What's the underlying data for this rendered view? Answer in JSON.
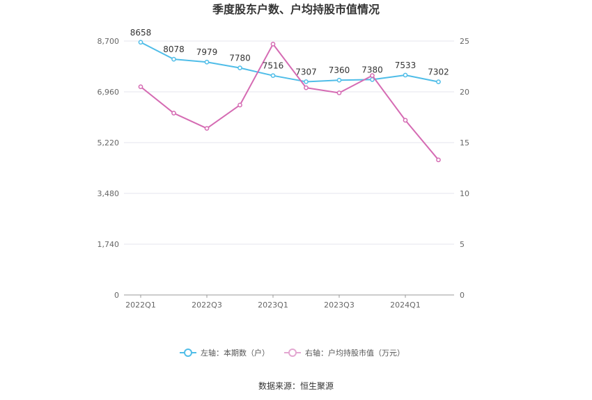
{
  "chart_data": {
    "type": "line",
    "title": "季度股东户数、户均持股市值情况",
    "categories": [
      "2022Q1",
      "2022Q2",
      "2022Q3",
      "2022Q4",
      "2023Q1",
      "2023Q2",
      "2023Q3",
      "2023Q4",
      "2024Q1",
      "2024Q2"
    ],
    "x_tick_labels": [
      "2022Q1",
      "2022Q3",
      "2023Q1",
      "2023Q3",
      "2024Q1"
    ],
    "left_axis": {
      "ylim": [
        0,
        8700
      ],
      "ticks": [
        "0",
        "1,740",
        "3,480",
        "5,220",
        "6,960",
        "8,700"
      ]
    },
    "right_axis": {
      "ylim": [
        0,
        25
      ],
      "ticks": [
        "0",
        "5",
        "10",
        "15",
        "20",
        "25"
      ]
    },
    "series": [
      {
        "name": "左轴：本期数（户）",
        "axis": "left",
        "color": "#4fbde8",
        "values": [
          8658,
          8078,
          7979,
          7780,
          7516,
          7307,
          7360,
          7380,
          7533,
          7302
        ],
        "labels": [
          "8658",
          "8078",
          "7979",
          "7780",
          "7516",
          "7307",
          "7360",
          "7380",
          "7533",
          "7302"
        ]
      },
      {
        "name": "右轴：户均持股市值（万元）",
        "axis": "right",
        "color": "#d56bb3",
        "values": [
          20.5,
          17.9,
          16.4,
          18.7,
          24.7,
          20.4,
          19.9,
          21.6,
          17.2,
          13.3
        ]
      }
    ],
    "grid": true,
    "legend_position": "bottom"
  },
  "source": "数据来源：恒生聚源"
}
